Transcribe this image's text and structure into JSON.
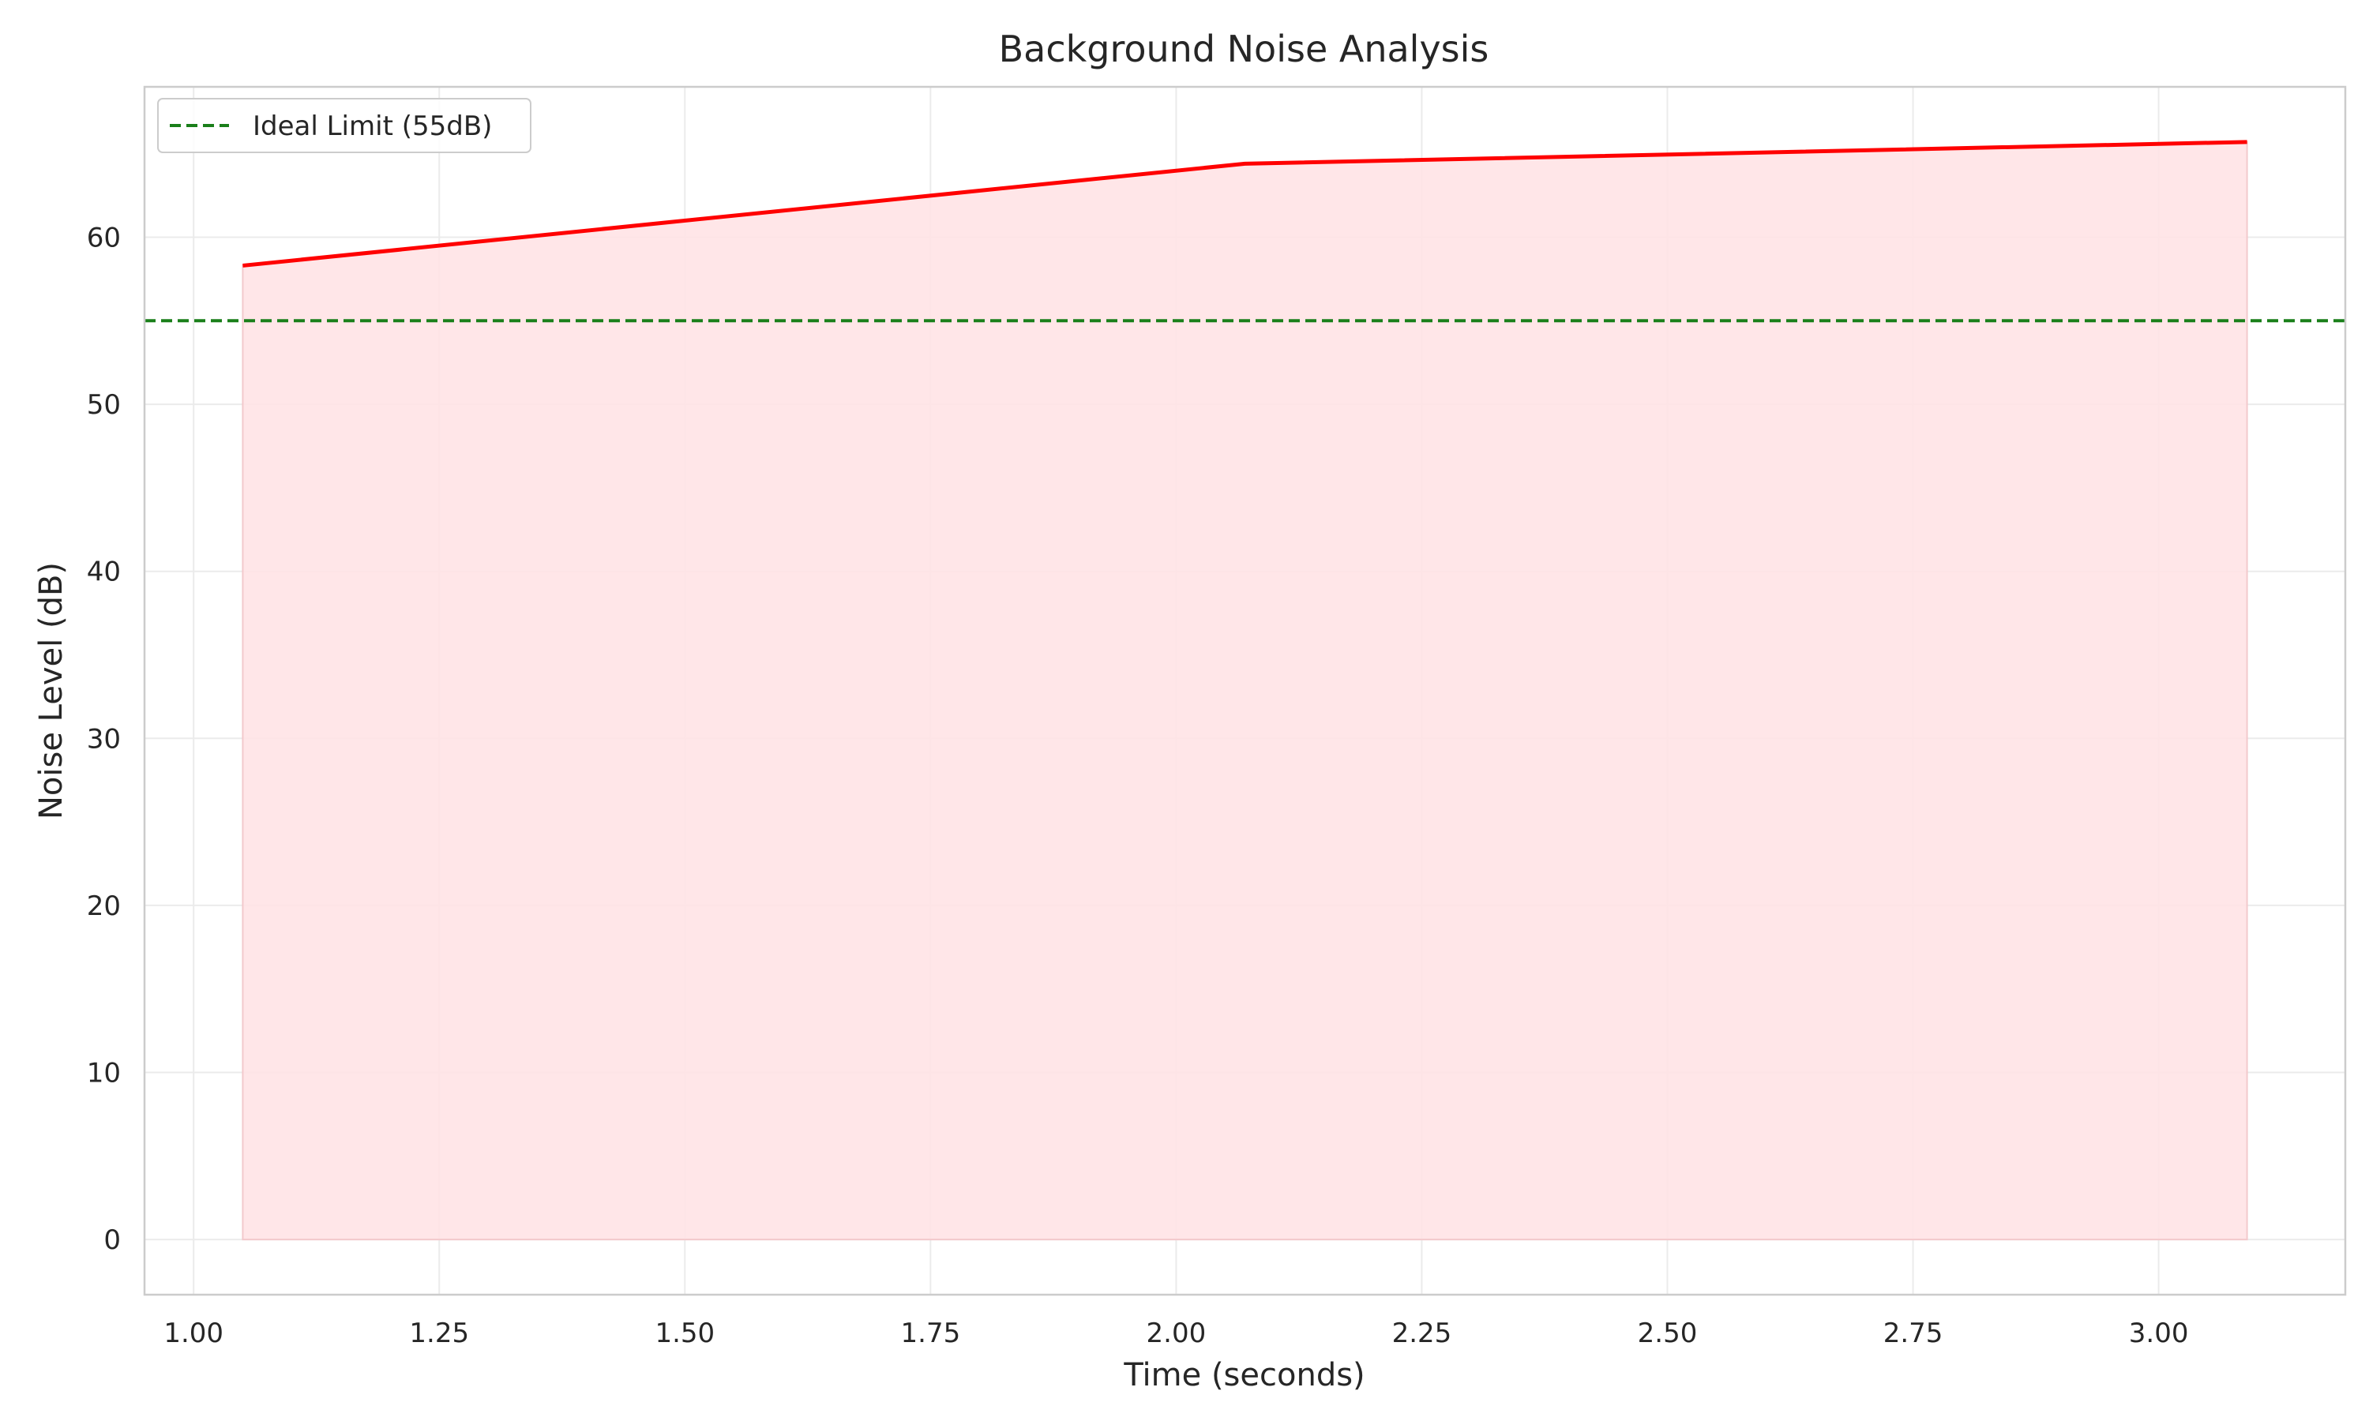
{
  "chart_data": {
    "type": "area",
    "title": "Background Noise Analysis",
    "xlabel": "Time (seconds)",
    "ylabel": "Noise Level (dB)",
    "xlim": [
      0.95,
      3.19
    ],
    "ylim": [
      -3.3,
      69
    ],
    "xticks": [
      1.0,
      1.25,
      1.5,
      1.75,
      2.0,
      2.25,
      2.5,
      2.75,
      3.0
    ],
    "xtick_labels": [
      "1.00",
      "1.25",
      "1.50",
      "1.75",
      "2.00",
      "2.25",
      "2.50",
      "2.75",
      "3.00"
    ],
    "yticks": [
      0,
      10,
      20,
      30,
      40,
      50,
      60
    ],
    "ytick_labels": [
      "0",
      "10",
      "20",
      "30",
      "40",
      "50",
      "60"
    ],
    "grid": true,
    "legend_position": "top-left",
    "series": [
      {
        "x": [
          1.05,
          2.07,
          3.09
        ],
        "y": [
          58.3,
          64.4,
          65.7
        ],
        "color": "#ff0000",
        "fill_color": "#ffe3e5"
      }
    ],
    "reference_lines": [
      {
        "name": "Ideal Limit (55dB)",
        "y": 55,
        "color": "#1a7f1a",
        "style": "dashed"
      }
    ]
  }
}
